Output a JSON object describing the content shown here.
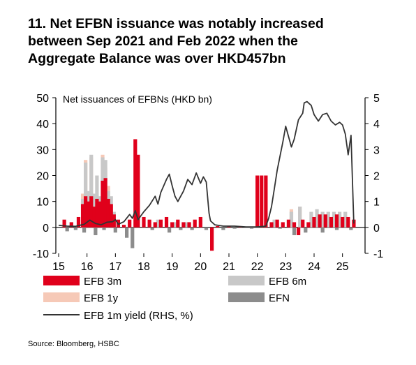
{
  "title_lines": [
    "11. Net EFBN issuance was notably increased",
    "between Sep 2021 and Feb 2022 when the",
    "Aggregate Balance was over HKD457bn"
  ],
  "source": "Source: Bloomberg, HSBC",
  "colors": {
    "efb3m": "#e0001b",
    "efb6m": "#c8c8c8",
    "efb1y": "#f6c9b7",
    "efn": "#8c8c8c",
    "line": "#333333",
    "axis": "#000000"
  },
  "chart_data": {
    "type": "bar",
    "subtitle": "Net issuances of EFBNs (HKD bn)",
    "ylim": [
      -10,
      50
    ],
    "y2lim": [
      -1,
      5
    ],
    "xlim": [
      15,
      25.5
    ],
    "x_ticks": [
      "15",
      "16",
      "17",
      "18",
      "19",
      "20",
      "21",
      "22",
      "23",
      "24",
      "25"
    ],
    "y_ticks": [
      "50",
      "40",
      "30",
      "20",
      "10",
      "0",
      "-10"
    ],
    "y2_ticks": [
      "5",
      "4",
      "3",
      "2",
      "1",
      "0",
      "-1"
    ],
    "legend": [
      "EFB 3m",
      "EFB 6m",
      "EFB 1y",
      "EFN",
      "EFB 1m yield (RHS, %)"
    ],
    "bar_series": [
      {
        "name": "EFB 3m",
        "points": [
          [
            15.2,
            3
          ],
          [
            15.45,
            2
          ],
          [
            15.7,
            4
          ],
          [
            15.85,
            9
          ],
          [
            15.95,
            12
          ],
          [
            16.05,
            10
          ],
          [
            16.15,
            12
          ],
          [
            16.25,
            8
          ],
          [
            16.35,
            11
          ],
          [
            16.45,
            10
          ],
          [
            16.55,
            18
          ],
          [
            16.65,
            19
          ],
          [
            16.75,
            11
          ],
          [
            16.85,
            9
          ],
          [
            16.95,
            5
          ],
          [
            17.1,
            3
          ],
          [
            17.3,
            1
          ],
          [
            17.5,
            3
          ],
          [
            17.7,
            34
          ],
          [
            17.8,
            28
          ],
          [
            18.0,
            4
          ],
          [
            18.2,
            3
          ],
          [
            18.4,
            2
          ],
          [
            18.6,
            3
          ],
          [
            18.8,
            4
          ],
          [
            19.0,
            2
          ],
          [
            19.2,
            3
          ],
          [
            19.4,
            2
          ],
          [
            19.6,
            2
          ],
          [
            19.8,
            3
          ],
          [
            20.0,
            4
          ],
          [
            20.4,
            -9
          ],
          [
            20.6,
            0.5
          ],
          [
            21.0,
            0.5
          ],
          [
            21.4,
            0.5
          ],
          [
            22.0,
            20
          ],
          [
            22.15,
            20
          ],
          [
            22.3,
            20
          ],
          [
            22.5,
            2
          ],
          [
            22.7,
            3
          ],
          [
            22.9,
            2
          ],
          [
            23.1,
            3
          ],
          [
            23.3,
            2
          ],
          [
            23.45,
            -3
          ],
          [
            23.6,
            3
          ],
          [
            23.8,
            2
          ],
          [
            24.0,
            4
          ],
          [
            24.2,
            5
          ],
          [
            24.4,
            5
          ],
          [
            24.6,
            4
          ],
          [
            24.8,
            5
          ],
          [
            25.0,
            4
          ],
          [
            25.2,
            4
          ],
          [
            25.4,
            3
          ]
        ]
      },
      {
        "name": "EFB 6m",
        "points": [
          [
            15.85,
            11
          ],
          [
            15.95,
            25
          ],
          [
            16.05,
            14
          ],
          [
            16.15,
            28
          ],
          [
            16.25,
            13
          ],
          [
            16.35,
            20
          ],
          [
            16.45,
            12
          ],
          [
            16.55,
            27
          ],
          [
            16.65,
            26
          ],
          [
            16.75,
            14
          ],
          [
            16.85,
            12
          ],
          [
            16.95,
            6
          ],
          [
            18.5,
            3
          ],
          [
            19.1,
            2
          ],
          [
            19.5,
            2
          ],
          [
            22.6,
            3
          ],
          [
            23.2,
            6
          ],
          [
            23.5,
            8
          ],
          [
            23.9,
            6
          ],
          [
            24.1,
            7
          ],
          [
            24.3,
            6
          ],
          [
            24.5,
            6
          ],
          [
            24.7,
            6
          ],
          [
            24.9,
            6
          ],
          [
            25.1,
            6
          ]
        ]
      },
      {
        "name": "EFB 1y",
        "points": [
          [
            15.85,
            13
          ],
          [
            15.95,
            26
          ],
          [
            16.15,
            27
          ],
          [
            16.55,
            28
          ],
          [
            16.65,
            23
          ],
          [
            16.75,
            16
          ],
          [
            23.2,
            7
          ],
          [
            23.5,
            8
          ]
        ]
      },
      {
        "name": "EFN",
        "points": [
          [
            15.3,
            -1.5
          ],
          [
            15.6,
            -1
          ],
          [
            15.9,
            -2
          ],
          [
            16.3,
            -3
          ],
          [
            16.6,
            -1
          ],
          [
            17.0,
            -2
          ],
          [
            17.4,
            -4
          ],
          [
            17.6,
            -8
          ],
          [
            18.3,
            -1
          ],
          [
            18.9,
            -2
          ],
          [
            19.3,
            -1
          ],
          [
            19.7,
            -1
          ],
          [
            20.2,
            -1
          ],
          [
            20.8,
            -1
          ],
          [
            21.2,
            -0.5
          ],
          [
            21.8,
            -0.5
          ],
          [
            22.8,
            -0.5
          ],
          [
            23.3,
            -3
          ],
          [
            23.7,
            -2
          ],
          [
            24.3,
            -2
          ],
          [
            24.8,
            -1
          ],
          [
            25.3,
            -1
          ]
        ]
      }
    ],
    "line_series": {
      "name": "EFB 1m yield (RHS, %)",
      "points": [
        [
          15.0,
          0.08
        ],
        [
          15.3,
          0.05
        ],
        [
          15.6,
          0.04
        ],
        [
          15.9,
          0.12
        ],
        [
          16.1,
          0.28
        ],
        [
          16.3,
          0.15
        ],
        [
          16.5,
          0.1
        ],
        [
          16.7,
          0.2
        ],
        [
          16.9,
          0.22
        ],
        [
          17.0,
          0.3
        ],
        [
          17.1,
          0.12
        ],
        [
          17.3,
          0.22
        ],
        [
          17.5,
          0.5
        ],
        [
          17.6,
          0.35
        ],
        [
          17.7,
          0.65
        ],
        [
          17.8,
          0.3
        ],
        [
          17.9,
          0.45
        ],
        [
          18.0,
          0.6
        ],
        [
          18.2,
          0.85
        ],
        [
          18.4,
          1.2
        ],
        [
          18.5,
          0.9
        ],
        [
          18.6,
          1.35
        ],
        [
          18.8,
          1.85
        ],
        [
          18.9,
          2.05
        ],
        [
          19.0,
          1.6
        ],
        [
          19.1,
          1.2
        ],
        [
          19.2,
          1.0
        ],
        [
          19.4,
          1.4
        ],
        [
          19.55,
          1.85
        ],
        [
          19.7,
          1.65
        ],
        [
          19.85,
          2.1
        ],
        [
          20.0,
          1.7
        ],
        [
          20.1,
          1.95
        ],
        [
          20.2,
          1.75
        ],
        [
          20.3,
          0.55
        ],
        [
          20.35,
          0.25
        ],
        [
          20.5,
          0.1
        ],
        [
          20.8,
          0.05
        ],
        [
          21.2,
          0.05
        ],
        [
          21.6,
          0.02
        ],
        [
          22.0,
          0.02
        ],
        [
          22.3,
          0.05
        ],
        [
          22.4,
          0.35
        ],
        [
          22.5,
          0.8
        ],
        [
          22.6,
          1.5
        ],
        [
          22.7,
          2.2
        ],
        [
          22.8,
          2.75
        ],
        [
          22.9,
          3.3
        ],
        [
          23.0,
          3.9
        ],
        [
          23.1,
          3.5
        ],
        [
          23.2,
          3.1
        ],
        [
          23.3,
          3.4
        ],
        [
          23.45,
          4.15
        ],
        [
          23.6,
          4.4
        ],
        [
          23.65,
          4.8
        ],
        [
          23.75,
          4.85
        ],
        [
          23.9,
          4.7
        ],
        [
          24.0,
          4.35
        ],
        [
          24.15,
          4.1
        ],
        [
          24.3,
          4.35
        ],
        [
          24.45,
          4.4
        ],
        [
          24.6,
          4.1
        ],
        [
          24.75,
          3.95
        ],
        [
          24.9,
          4.05
        ],
        [
          25.0,
          3.95
        ],
        [
          25.1,
          3.6
        ],
        [
          25.2,
          2.8
        ],
        [
          25.3,
          3.55
        ],
        [
          25.4,
          0.15
        ]
      ]
    }
  }
}
